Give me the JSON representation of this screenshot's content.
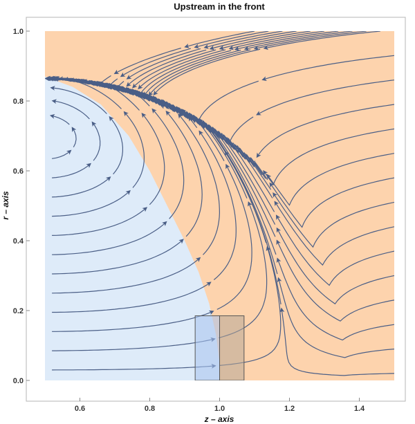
{
  "chart_data": {
    "type": "streamplot",
    "title": "Upstream in the front",
    "xlabel": "z – axis",
    "ylabel": "r – axis",
    "xlim": [
      0.5,
      1.5
    ],
    "ylim": [
      0,
      1
    ],
    "xticks": [
      "0.6",
      "0.8",
      "1.0",
      "1.2",
      "1.4"
    ],
    "xtick_values": [
      0.6,
      0.8,
      1.0,
      1.2,
      1.4
    ],
    "yticks": [
      "0.0",
      "0.2",
      "0.4",
      "0.6",
      "0.8",
      "1.0"
    ],
    "ytick_values": [
      0.0,
      0.2,
      0.4,
      0.6,
      0.8,
      1.0
    ],
    "grid": false,
    "regions": [
      {
        "name": "outer-flow",
        "color": "#fdd3ad"
      },
      {
        "name": "inner-vortex",
        "color": "#deebf9"
      }
    ],
    "boundary_curve": [
      [
        0.5,
        0.87
      ],
      [
        0.58,
        0.84
      ],
      [
        0.66,
        0.79
      ],
      [
        0.74,
        0.7
      ],
      [
        0.8,
        0.6
      ],
      [
        0.86,
        0.48
      ],
      [
        0.9,
        0.4
      ],
      [
        0.94,
        0.31
      ],
      [
        0.97,
        0.22
      ],
      [
        0.99,
        0.13
      ],
      [
        1.0,
        0.05
      ],
      [
        1.0,
        0.0
      ]
    ],
    "highlight_boxes": [
      {
        "x": [
          0.93,
          1.0
        ],
        "y": [
          0.0,
          0.185
        ],
        "color": "#a7c2ee"
      },
      {
        "x": [
          1.0,
          1.07
        ],
        "y": [
          0.0,
          0.185
        ],
        "color": "#b6a898"
      }
    ],
    "stream_color": "#4a5e86"
  }
}
